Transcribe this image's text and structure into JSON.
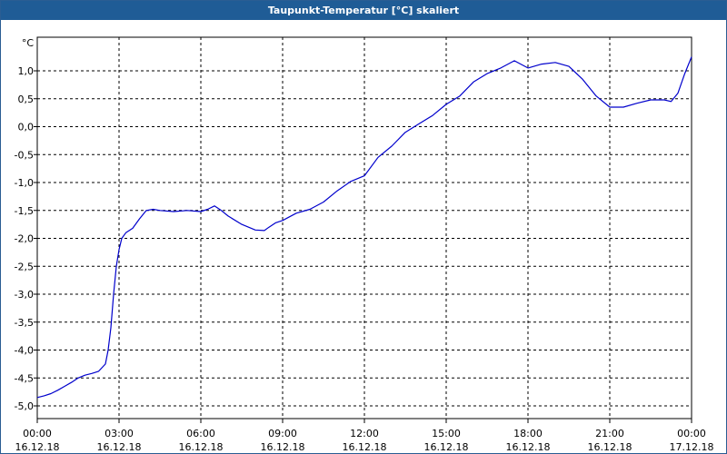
{
  "chart_data": {
    "type": "line",
    "title": "Taupunkt-Temperatur [°C] skaliert",
    "unit_label": "°C",
    "ylim": [
      -5.2,
      1.5
    ],
    "y_ticks": [
      1.0,
      0.5,
      0.0,
      -0.5,
      -1.0,
      -1.5,
      -2.0,
      -2.5,
      -3.0,
      -3.5,
      -4.0,
      -4.5,
      -5.0
    ],
    "y_tick_labels": [
      "1,0",
      "0,5",
      "0,0",
      "-0,5",
      "-1,0",
      "-1,5",
      "-2,0",
      "-2,5",
      "-3,0",
      "-3,5",
      "-4,0",
      "-4,5",
      "-5,0"
    ],
    "x_ticks": [
      {
        "time": "00:00",
        "date": "16.12.18"
      },
      {
        "time": "03:00",
        "date": "16.12.18"
      },
      {
        "time": "06:00",
        "date": "16.12.18"
      },
      {
        "time": "09:00",
        "date": "16.12.18"
      },
      {
        "time": "12:00",
        "date": "16.12.18"
      },
      {
        "time": "15:00",
        "date": "16.12.18"
      },
      {
        "time": "18:00",
        "date": "16.12.18"
      },
      {
        "time": "21:00",
        "date": "16.12.18"
      },
      {
        "time": "00:00",
        "date": "17.12.18"
      }
    ],
    "grid": true,
    "line_color": "#0000cc",
    "series": [
      {
        "x": [
          0.0,
          0.25,
          0.5,
          0.75,
          1.0,
          1.25,
          1.5,
          1.75,
          2.0,
          2.25,
          2.5,
          2.6,
          2.7,
          2.8,
          2.9,
          3.0,
          3.1,
          3.25,
          3.5,
          3.75,
          4.0,
          4.25,
          4.5,
          5.0,
          5.5,
          6.0,
          6.25,
          6.5,
          6.75,
          7.0,
          7.5,
          8.0,
          8.33,
          8.5,
          8.75,
          9.0,
          9.5,
          10.0,
          10.5,
          11.0,
          11.5,
          12.0,
          12.5,
          13.0,
          13.5,
          14.0,
          14.5,
          15.0,
          15.5,
          16.0,
          16.5,
          17.0,
          17.5,
          18.0,
          18.5,
          19.0,
          19.5,
          20.0,
          20.5,
          21.0,
          21.5,
          22.0,
          22.5,
          23.0,
          23.25,
          23.5,
          23.75,
          24.0
        ],
        "values": [
          -4.85,
          -4.82,
          -4.78,
          -4.72,
          -4.65,
          -4.58,
          -4.5,
          -4.45,
          -4.42,
          -4.38,
          -4.25,
          -4.0,
          -3.6,
          -3.0,
          -2.5,
          -2.2,
          -2.0,
          -1.9,
          -1.82,
          -1.65,
          -1.5,
          -1.48,
          -1.5,
          -1.52,
          -1.5,
          -1.52,
          -1.48,
          -1.42,
          -1.5,
          -1.6,
          -1.75,
          -1.85,
          -1.86,
          -1.8,
          -1.72,
          -1.68,
          -1.55,
          -1.48,
          -1.35,
          -1.15,
          -0.98,
          -0.88,
          -0.55,
          -0.35,
          -0.1,
          0.05,
          0.2,
          0.4,
          0.55,
          0.8,
          0.95,
          1.05,
          1.18,
          1.05,
          1.12,
          1.15,
          1.08,
          0.85,
          0.55,
          0.35,
          0.35,
          0.42,
          0.48,
          0.48,
          0.45,
          0.6,
          0.95,
          1.25
        ]
      }
    ]
  }
}
